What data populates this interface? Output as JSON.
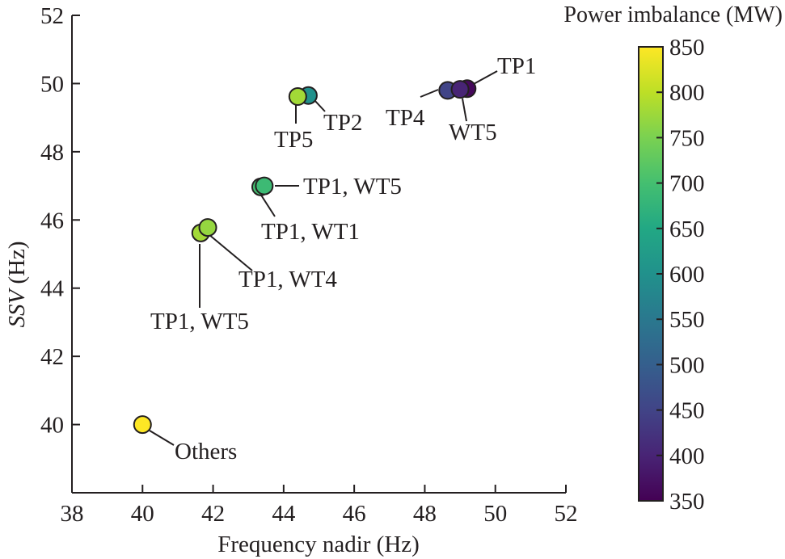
{
  "chart_data": {
    "type": "scatter",
    "xlabel": "Frequency nadir (Hz)",
    "ylabel_italic": "SSV",
    "ylabel_rest": " (Hz)",
    "xlim": [
      38,
      52
    ],
    "ylim": [
      38.0,
      52
    ],
    "xticks": [
      38,
      40,
      42,
      44,
      46,
      48,
      50,
      52
    ],
    "yticks": [
      40,
      42,
      44,
      46,
      48,
      50,
      52
    ],
    "grid": false,
    "colorbar": {
      "title": "Power imbalance (MW)",
      "range": [
        350,
        850
      ],
      "ticks": [
        350,
        400,
        450,
        500,
        550,
        600,
        650,
        700,
        750,
        800,
        850
      ],
      "colormap": "viridis"
    },
    "points": [
      {
        "x": 40.0,
        "y": 40.0,
        "power": 850,
        "label": "Others"
      },
      {
        "x": 41.65,
        "y": 45.62,
        "power": 780,
        "label": "TP1, WT5"
      },
      {
        "x": 41.85,
        "y": 45.78,
        "power": 770,
        "label": "TP1, WT4"
      },
      {
        "x": 43.35,
        "y": 46.97,
        "power": 700,
        "label": "TP1, WT1"
      },
      {
        "x": 43.45,
        "y": 47.0,
        "power": 690,
        "label": "TP1, WT5"
      },
      {
        "x": 44.7,
        "y": 49.65,
        "power": 600,
        "label": "TP2"
      },
      {
        "x": 44.4,
        "y": 49.62,
        "power": 780,
        "label": "TP5"
      },
      {
        "x": 48.65,
        "y": 49.8,
        "power": 450,
        "label": "TP4"
      },
      {
        "x": 49.2,
        "y": 49.85,
        "power": 360,
        "label": "TP1"
      },
      {
        "x": 49.0,
        "y": 49.83,
        "power": 400,
        "label": "WT5"
      }
    ]
  }
}
